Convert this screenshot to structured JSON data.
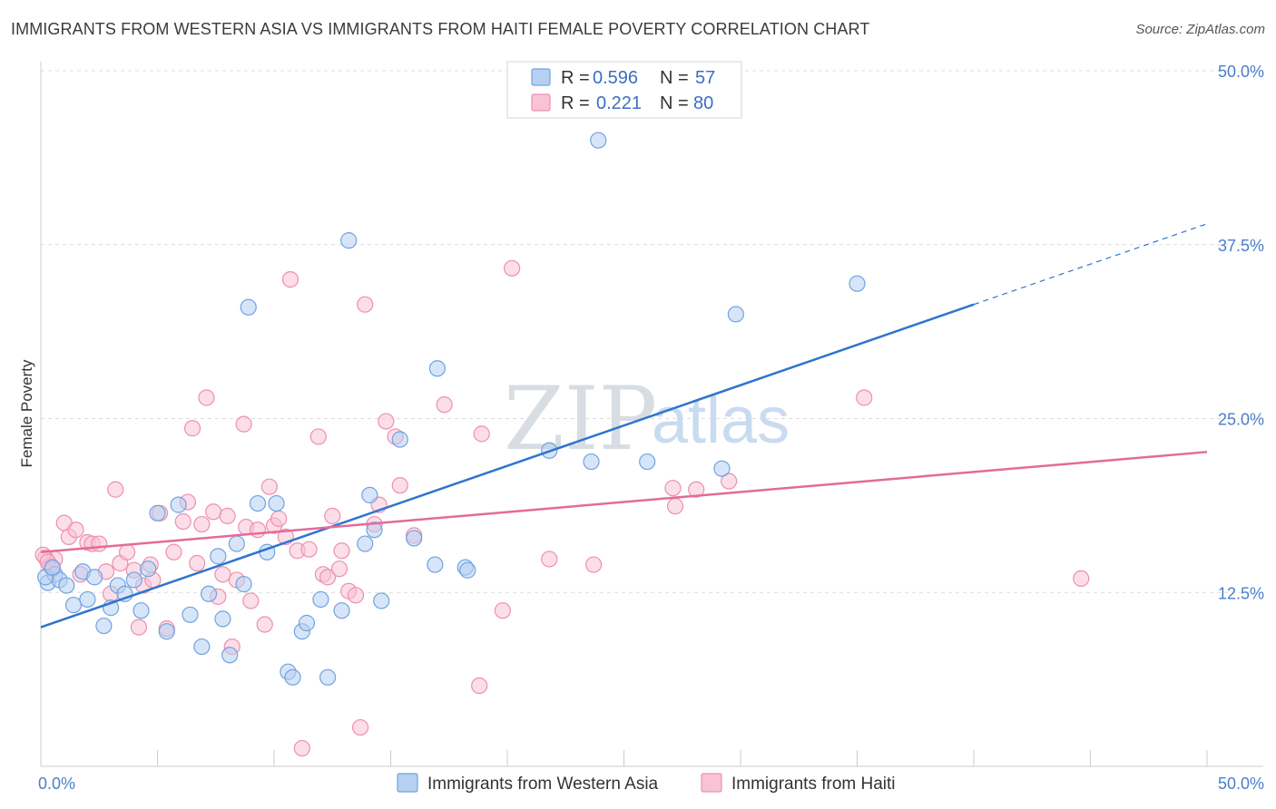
{
  "title": "IMMIGRANTS FROM WESTERN ASIA VS IMMIGRANTS FROM HAITI FEMALE POVERTY CORRELATION CHART",
  "source": "Source: ZipAtlas.com",
  "watermark": {
    "zip": "ZIP",
    "atlas": "atlas"
  },
  "colors": {
    "blue": "#6fa3e0",
    "blue_fill": "#b6d0f2",
    "blue_line": "#2f74cf",
    "pink": "#ee8fb0",
    "pink_fill": "#f7c3d5",
    "pink_line": "#e36b98",
    "tick_text": "#4a7fcb"
  },
  "legend": {
    "rows": [
      {
        "r_label": "R =",
        "r_value": "0.596",
        "n_label": "N =",
        "n_value": "57"
      },
      {
        "r_label": "R =",
        "r_value": "0.221",
        "n_label": "N =",
        "n_value": "80"
      }
    ]
  },
  "bottom_legend": [
    "Immigrants from Western Asia",
    "Immigrants from Haiti"
  ],
  "chart_data": {
    "type": "scatter",
    "title": "IMMIGRANTS FROM WESTERN ASIA VS IMMIGRANTS FROM HAITI FEMALE POVERTY CORRELATION CHART",
    "xlabel": "",
    "ylabel": "Female Poverty",
    "xlim": [
      0,
      50
    ],
    "ylim": [
      0,
      50
    ],
    "x_tick_labels": [
      "0.0%",
      "50.0%"
    ],
    "y_tick_labels": [
      "12.5%",
      "25.0%",
      "37.5%",
      "50.0%"
    ],
    "y_ticks": [
      12.5,
      25.0,
      37.5,
      50.0
    ],
    "grid": true,
    "legend_position": "top-center",
    "series": [
      {
        "name": "Immigrants from Western Asia",
        "r": 0.596,
        "n": 57,
        "trend": {
          "x0": 0,
          "y0": 10.0,
          "x1": 40,
          "y1": 33.2,
          "dash_x1": 50,
          "dash_y1": 39.0
        },
        "points": [
          [
            0.3,
            13.2
          ],
          [
            0.6,
            13.8
          ],
          [
            0.8,
            13.4
          ],
          [
            1.1,
            13.0
          ],
          [
            1.4,
            11.6
          ],
          [
            1.8,
            14.0
          ],
          [
            2.0,
            12.0
          ],
          [
            2.3,
            13.6
          ],
          [
            2.7,
            10.1
          ],
          [
            3.0,
            11.4
          ],
          [
            3.3,
            13.0
          ],
          [
            3.6,
            12.4
          ],
          [
            4.0,
            13.4
          ],
          [
            4.3,
            11.2
          ],
          [
            4.6,
            14.2
          ],
          [
            5.0,
            18.2
          ],
          [
            5.4,
            9.7
          ],
          [
            5.9,
            18.8
          ],
          [
            6.4,
            10.9
          ],
          [
            6.9,
            8.6
          ],
          [
            7.2,
            12.4
          ],
          [
            7.6,
            15.1
          ],
          [
            7.8,
            10.6
          ],
          [
            8.1,
            8.0
          ],
          [
            8.4,
            16.0
          ],
          [
            8.7,
            13.1
          ],
          [
            8.9,
            33.0
          ],
          [
            9.3,
            18.9
          ],
          [
            9.7,
            15.4
          ],
          [
            10.1,
            18.9
          ],
          [
            10.6,
            6.8
          ],
          [
            10.8,
            6.4
          ],
          [
            11.2,
            9.7
          ],
          [
            11.4,
            10.3
          ],
          [
            12.0,
            12.0
          ],
          [
            12.3,
            6.4
          ],
          [
            12.9,
            11.2
          ],
          [
            13.2,
            37.8
          ],
          [
            13.9,
            16.0
          ],
          [
            14.1,
            19.5
          ],
          [
            14.3,
            17.0
          ],
          [
            14.6,
            11.9
          ],
          [
            15.4,
            23.5
          ],
          [
            16.0,
            16.4
          ],
          [
            16.9,
            14.5
          ],
          [
            17.0,
            28.6
          ],
          [
            18.2,
            14.3
          ],
          [
            18.3,
            14.1
          ],
          [
            21.8,
            22.7
          ],
          [
            23.6,
            21.9
          ],
          [
            23.9,
            45.0
          ],
          [
            26.0,
            21.9
          ],
          [
            29.2,
            21.4
          ],
          [
            29.8,
            32.5
          ],
          [
            35.0,
            34.7
          ],
          [
            0.2,
            13.6
          ],
          [
            0.5,
            14.3
          ]
        ]
      },
      {
        "name": "Immigrants from Haiti",
        "r": 0.221,
        "n": 80,
        "trend": {
          "x0": 0,
          "y0": 15.4,
          "x1": 50,
          "y1": 22.6
        },
        "points": [
          [
            0.2,
            15.0
          ],
          [
            0.4,
            14.4
          ],
          [
            0.6,
            14.9
          ],
          [
            1.0,
            17.5
          ],
          [
            1.2,
            16.5
          ],
          [
            1.5,
            17.0
          ],
          [
            1.7,
            13.8
          ],
          [
            2.0,
            16.1
          ],
          [
            2.2,
            16.0
          ],
          [
            2.5,
            16.0
          ],
          [
            2.8,
            14.0
          ],
          [
            3.0,
            12.4
          ],
          [
            3.2,
            19.9
          ],
          [
            3.4,
            14.6
          ],
          [
            3.7,
            15.4
          ],
          [
            4.0,
            14.1
          ],
          [
            4.2,
            10.0
          ],
          [
            4.4,
            13.0
          ],
          [
            4.7,
            14.5
          ],
          [
            5.1,
            18.2
          ],
          [
            5.4,
            9.9
          ],
          [
            5.7,
            15.4
          ],
          [
            6.1,
            17.6
          ],
          [
            6.3,
            19.0
          ],
          [
            6.5,
            24.3
          ],
          [
            6.7,
            14.6
          ],
          [
            6.9,
            17.4
          ],
          [
            7.1,
            26.5
          ],
          [
            7.4,
            18.3
          ],
          [
            7.6,
            12.2
          ],
          [
            7.8,
            13.8
          ],
          [
            8.0,
            18.0
          ],
          [
            8.2,
            8.6
          ],
          [
            8.4,
            13.4
          ],
          [
            8.7,
            24.6
          ],
          [
            8.8,
            17.2
          ],
          [
            9.0,
            11.9
          ],
          [
            9.3,
            17.0
          ],
          [
            9.6,
            10.2
          ],
          [
            9.8,
            20.1
          ],
          [
            10.0,
            17.3
          ],
          [
            10.2,
            17.8
          ],
          [
            10.5,
            16.5
          ],
          [
            10.7,
            35.0
          ],
          [
            11.0,
            15.5
          ],
          [
            11.2,
            1.3
          ],
          [
            11.5,
            15.6
          ],
          [
            11.9,
            23.7
          ],
          [
            12.1,
            13.8
          ],
          [
            12.3,
            13.6
          ],
          [
            12.5,
            18.0
          ],
          [
            12.8,
            14.2
          ],
          [
            12.9,
            15.5
          ],
          [
            13.2,
            12.6
          ],
          [
            13.5,
            12.3
          ],
          [
            13.7,
            2.8
          ],
          [
            13.9,
            33.2
          ],
          [
            14.3,
            17.4
          ],
          [
            14.5,
            18.8
          ],
          [
            14.8,
            24.8
          ],
          [
            15.2,
            23.7
          ],
          [
            15.4,
            20.2
          ],
          [
            16.0,
            16.6
          ],
          [
            17.3,
            26.0
          ],
          [
            18.8,
            5.8
          ],
          [
            18.9,
            23.9
          ],
          [
            19.8,
            11.2
          ],
          [
            20.2,
            35.8
          ],
          [
            21.8,
            14.9
          ],
          [
            23.7,
            14.5
          ],
          [
            27.1,
            20.0
          ],
          [
            27.2,
            18.7
          ],
          [
            28.1,
            19.9
          ],
          [
            29.5,
            20.5
          ],
          [
            35.3,
            26.5
          ],
          [
            44.6,
            13.5
          ],
          [
            0.1,
            15.2
          ],
          [
            0.3,
            14.7
          ],
          [
            0.5,
            14.2
          ],
          [
            4.8,
            13.4
          ]
        ]
      }
    ]
  }
}
